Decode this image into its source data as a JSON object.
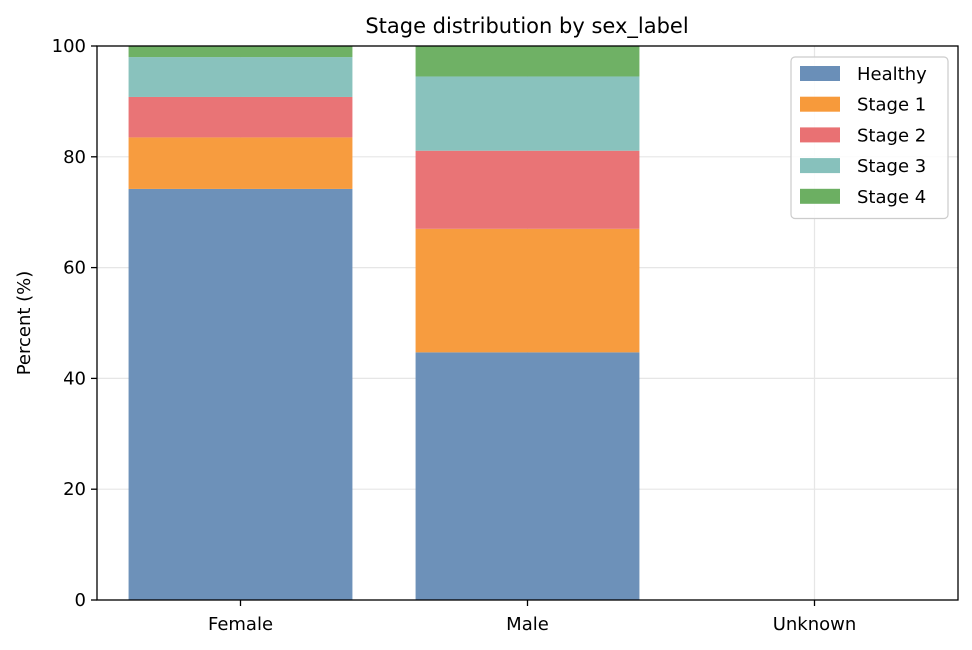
{
  "chart_data": {
    "type": "bar",
    "stacked": true,
    "title": "Stage distribution by sex_label",
    "xlabel": "",
    "ylabel": "Percent (%)",
    "ylim": [
      0,
      100
    ],
    "yticks": [
      "0",
      "20",
      "40",
      "60",
      "80",
      "100"
    ],
    "grid": true,
    "legend_position": "top-right",
    "categories": [
      "Female",
      "Male",
      "Unknown"
    ],
    "series": [
      {
        "name": "Healthy",
        "color": "#6a8fb8",
        "values": [
          74.2,
          44.7,
          0
        ]
      },
      {
        "name": "Stage 1",
        "color": "#f79a3b",
        "values": [
          9.3,
          22.3,
          0
        ]
      },
      {
        "name": "Stage 2",
        "color": "#e97173",
        "values": [
          7.3,
          14.1,
          0
        ]
      },
      {
        "name": "Stage 3",
        "color": "#87c1bc",
        "values": [
          7.2,
          13.4,
          0
        ]
      },
      {
        "name": "Stage 4",
        "color": "#6caf62",
        "values": [
          2.0,
          5.5,
          0
        ]
      }
    ]
  }
}
